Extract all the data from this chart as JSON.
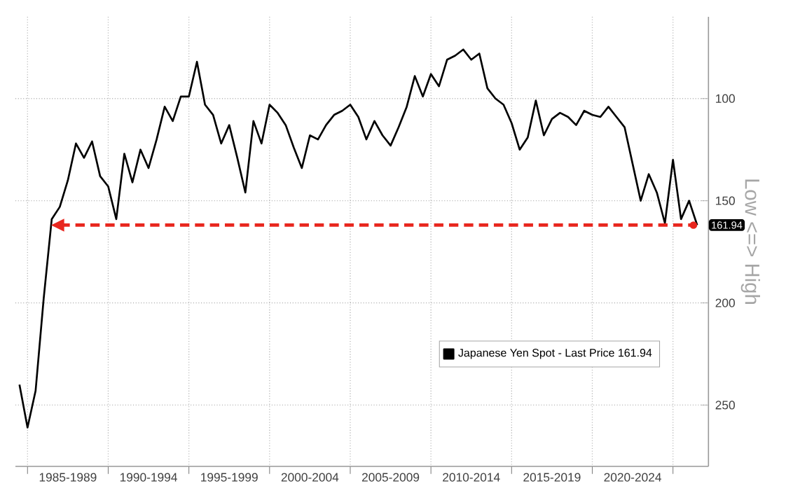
{
  "chart_data": {
    "type": "line",
    "ylabel": "Low <=> High",
    "categories": [
      null,
      null,
      null,
      null,
      null,
      null,
      "1985-1989",
      null,
      null,
      null,
      null,
      null,
      null,
      null,
      null,
      null,
      "1990-1994",
      null,
      null,
      null,
      null,
      null,
      null,
      null,
      null,
      null,
      "1995-1999",
      null,
      null,
      null,
      null,
      null,
      null,
      null,
      null,
      null,
      "2000-2004",
      null,
      null,
      null,
      null,
      null,
      null,
      null,
      null,
      null,
      "2005-2009",
      null,
      null,
      null,
      null,
      null,
      null,
      null,
      null,
      null,
      "2010-2014",
      null,
      null,
      null,
      null,
      null,
      null,
      null,
      null,
      null,
      "2015-2019",
      null,
      null,
      null,
      null,
      null,
      null,
      null,
      null,
      null,
      "2020-2024",
      null,
      null,
      null,
      null,
      null,
      null,
      null,
      null
    ],
    "series": [
      {
        "name": "Japanese Yen Spot - Last Price 161.94",
        "color": "#000000",
        "values": [
          240,
          261,
          243,
          198,
          159,
          153,
          140,
          122,
          129,
          121,
          138,
          143,
          159,
          127,
          141,
          125,
          134,
          120,
          104,
          111,
          99,
          99,
          82,
          103,
          108,
          122,
          113,
          129,
          146,
          111,
          122,
          103,
          107,
          113,
          124,
          134,
          118,
          120,
          113,
          108,
          106,
          103,
          109,
          120,
          111,
          118,
          123,
          114,
          104,
          89,
          99,
          88,
          94,
          81,
          79,
          76,
          81,
          78,
          95,
          100,
          103,
          112,
          125,
          119,
          101,
          118,
          110,
          107,
          109,
          113,
          106,
          108,
          109,
          104,
          109,
          114,
          132,
          150,
          137,
          146,
          161,
          130,
          159,
          150,
          161.94
        ]
      }
    ],
    "ylim": [
      280,
      60
    ],
    "yticks": [
      100,
      150,
      200,
      250
    ],
    "grid": true,
    "legend": "bottom right",
    "ref_lines": [
      {
        "axis": "y",
        "value": 161.94,
        "color": "#e8261e",
        "line_style": "dashed"
      }
    ],
    "annotations": [
      {
        "text": "161.94",
        "y": 161.94
      }
    ]
  }
}
